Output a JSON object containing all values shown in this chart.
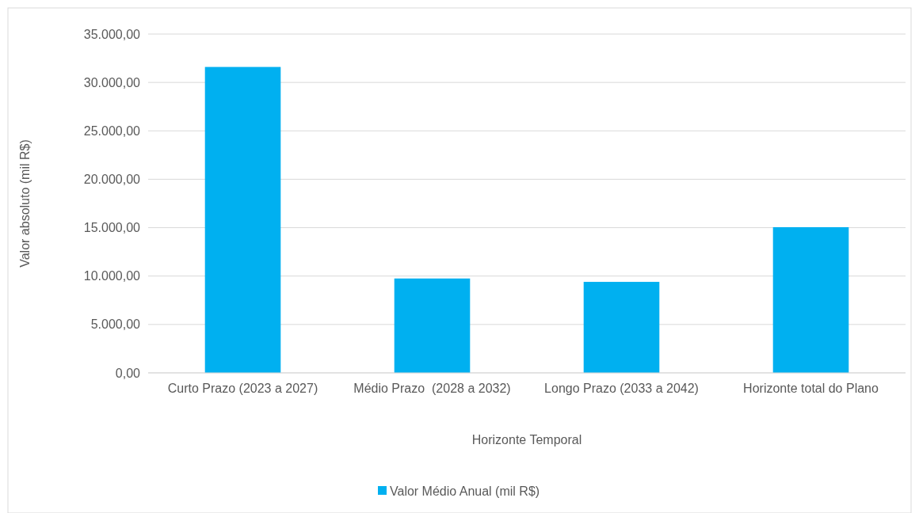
{
  "chart_data": {
    "type": "bar",
    "xlabel": "Horizonte Temporal",
    "ylabel": "Valor absoluto (mil R$)",
    "categories": [
      "Curto Prazo (2023 a 2027)",
      "Médio Prazo  (2028 a 2032)",
      "Longo Prazo (2033 a 2042)",
      "Horizonte total do Plano"
    ],
    "series": [
      {
        "name": "Valor Médio Anual (mil R$)",
        "color": "#00b0f0",
        "values": [
          31600,
          9750,
          9400,
          15050
        ]
      }
    ],
    "ylim": [
      0,
      35000
    ],
    "yticks": [
      {
        "value": 0,
        "label": "0,00"
      },
      {
        "value": 5000,
        "label": "5.000,00"
      },
      {
        "value": 10000,
        "label": "10.000,00"
      },
      {
        "value": 15000,
        "label": "15.000,00"
      },
      {
        "value": 20000,
        "label": "20.000,00"
      },
      {
        "value": 25000,
        "label": "25.000,00"
      },
      {
        "value": 30000,
        "label": "30.000,00"
      },
      {
        "value": 35000,
        "label": "35.000,00"
      }
    ],
    "grid": "y",
    "legend": "bottom"
  }
}
